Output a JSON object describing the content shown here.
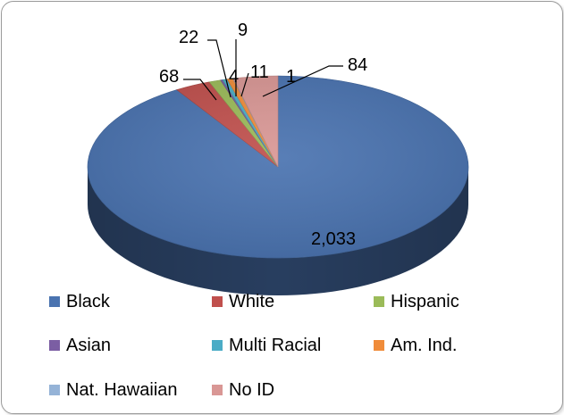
{
  "chart_data": {
    "type": "pie",
    "style": "3d",
    "title": "",
    "legend_position": "bottom",
    "slices": [
      {
        "label": "Black",
        "value": 2033,
        "value_label": "2,033",
        "color": "#4a73b0"
      },
      {
        "label": "White",
        "value": 68,
        "value_label": "68",
        "color": "#c0504d"
      },
      {
        "label": "Hispanic",
        "value": 22,
        "value_label": "22",
        "color": "#9bbb59"
      },
      {
        "label": "Asian",
        "value": 4,
        "value_label": "4",
        "color": "#7b5ea3"
      },
      {
        "label": "Multi Racial",
        "value": 9,
        "value_label": "9",
        "color": "#4bacc6"
      },
      {
        "label": "Am. Ind.",
        "value": 11,
        "value_label": "11",
        "color": "#f08c3a"
      },
      {
        "label": "Nat. Hawaiian",
        "value": 1,
        "value_label": "1",
        "color": "#95b3d7"
      },
      {
        "label": "No ID",
        "value": 84,
        "value_label": "84",
        "color": "#d99795"
      }
    ]
  }
}
